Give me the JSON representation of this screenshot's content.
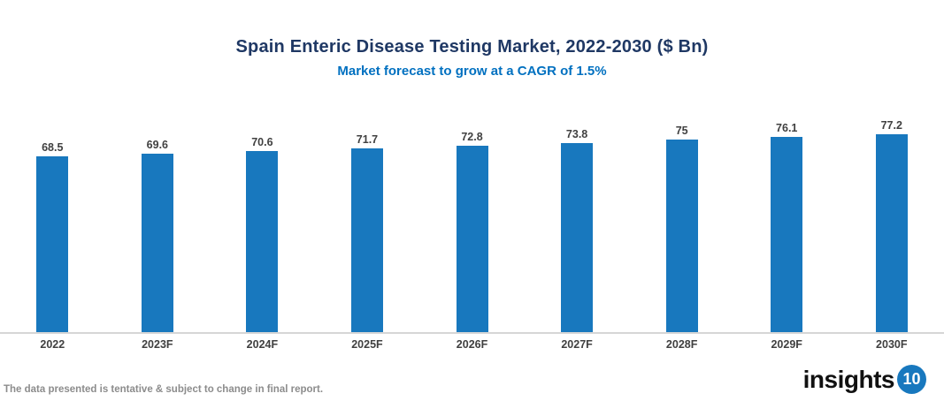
{
  "title": "Spain Enteric Disease Testing Market, 2022-2030 ($ Bn)",
  "subtitle": "Market forecast to grow at a CAGR of 1.5%",
  "chart_data": {
    "type": "bar",
    "categories": [
      "2022",
      "2023F",
      "2024F",
      "2025F",
      "2026F",
      "2027F",
      "2028F",
      "2029F",
      "2030F"
    ],
    "values": [
      68.5,
      69.6,
      70.6,
      71.7,
      72.8,
      73.8,
      75,
      76.1,
      77.2
    ],
    "title": "Spain Enteric Disease Testing Market, 2022-2030 ($ Bn)",
    "subtitle": "Market forecast to grow at a CAGR of 1.5%",
    "xlabel": "",
    "ylabel": "",
    "ylim": [
      0,
      77.2
    ],
    "grid": false,
    "legend": false,
    "bar_color": "#1878BE",
    "value_labels_shown": true
  },
  "colors": {
    "title": "#1F3864",
    "subtitle": "#0070C0",
    "bar": "#1878BE",
    "axis_line": "#D6D6D6",
    "labels": "#404040",
    "disclaimer": "#8C8C8C",
    "logo_badge": "#1878BE"
  },
  "footer": {
    "disclaimer": "The data presented is tentative & subject to change in final report."
  },
  "logo": {
    "text": "insights",
    "badge": "10"
  }
}
